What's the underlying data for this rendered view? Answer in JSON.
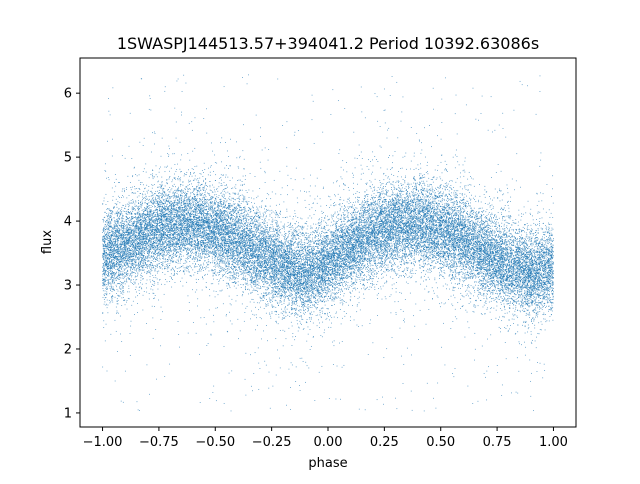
{
  "chart_data": {
    "type": "scatter",
    "title": "1SWASPJ144513.57+394041.2 Period 10392.63086s",
    "xlabel": "phase",
    "ylabel": "flux",
    "xlim": [
      -1.1,
      1.1
    ],
    "ylim": [
      0.78,
      6.55
    ],
    "xticks": [
      -1.0,
      -0.75,
      -0.5,
      -0.25,
      0.0,
      0.25,
      0.5,
      0.75,
      1.0
    ],
    "xtick_labels": [
      "−1.00",
      "−0.75",
      "−0.50",
      "−0.25",
      "0.00",
      "0.25",
      "0.50",
      "0.75",
      "1.00"
    ],
    "yticks": [
      1,
      2,
      3,
      4,
      5,
      6
    ],
    "ytick_labels": [
      "1",
      "2",
      "3",
      "4",
      "5",
      "6"
    ],
    "grid": false,
    "point_color": "#1f77b4",
    "series": [
      {
        "phase_range": [
          -1.0,
          1.0
        ],
        "points_approx": 30000,
        "light_curve": {
          "x": [
            -1.0,
            -0.9,
            -0.8,
            -0.7,
            -0.6,
            -0.5,
            -0.4,
            -0.3,
            -0.2,
            -0.1,
            0.0,
            0.1,
            0.2,
            0.3,
            0.4,
            0.5,
            0.6,
            0.7,
            0.8,
            0.9,
            1.0
          ],
          "y": [
            3.45,
            3.6,
            3.8,
            3.95,
            3.95,
            3.85,
            3.7,
            3.5,
            3.3,
            3.15,
            3.35,
            3.6,
            3.8,
            3.95,
            3.95,
            3.85,
            3.7,
            3.5,
            3.3,
            3.15,
            3.3
          ]
        },
        "core_scatter_sigma": 0.32,
        "outlier_range": [
          1.0,
          6.3
        ]
      }
    ]
  }
}
